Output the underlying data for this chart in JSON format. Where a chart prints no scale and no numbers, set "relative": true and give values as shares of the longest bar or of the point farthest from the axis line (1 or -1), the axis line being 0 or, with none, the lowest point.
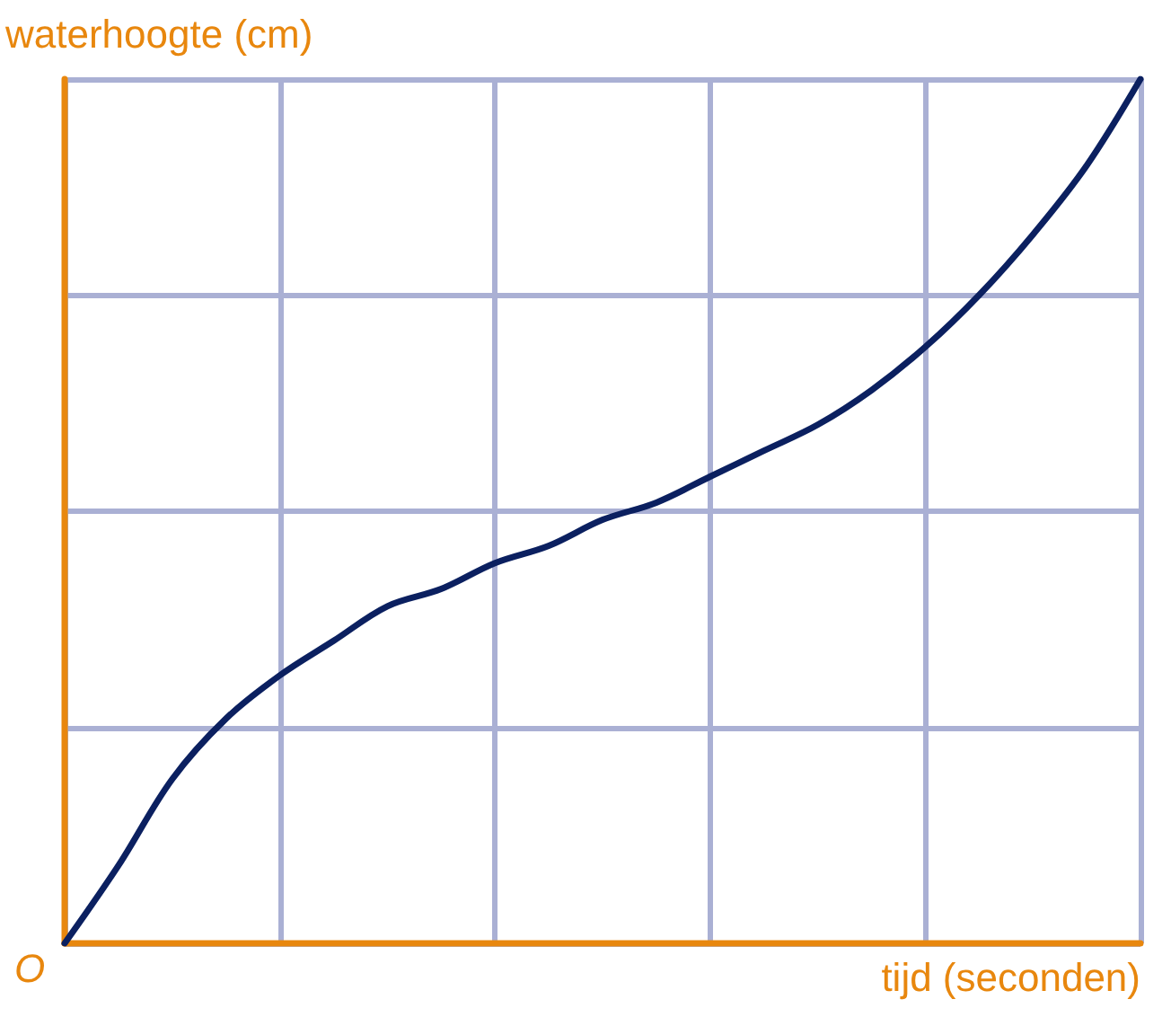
{
  "chart_data": {
    "type": "line",
    "relative": true,
    "xlabel": "tijd (seconden)",
    "ylabel": "waterhoogte (cm)",
    "annotations": [
      "O"
    ],
    "categories": [
      null,
      null,
      null,
      null,
      null,
      null,
      null,
      null,
      null,
      null,
      null,
      null,
      null,
      null,
      null,
      null,
      null,
      null,
      null,
      null,
      null
    ],
    "series": [
      {
        "color": "#0b2060",
        "values": [
          0,
          0.09,
          0.19,
          0.26,
          0.31,
          0.35,
          0.39,
          0.41,
          0.44,
          0.46,
          0.49,
          0.51,
          0.54,
          0.57,
          0.6,
          0.64,
          0.69,
          0.75,
          0.82,
          0.9,
          1
        ]
      }
    ],
    "grid": true,
    "marker": "none",
    "line_style": "solid"
  }
}
